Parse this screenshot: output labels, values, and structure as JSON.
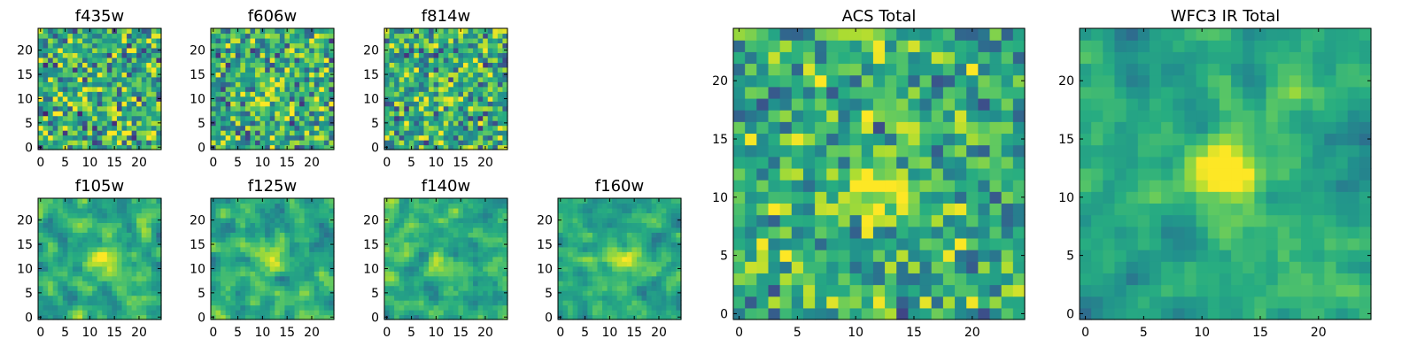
{
  "figure": {
    "colormap": "viridis",
    "colors": {
      "low": "#440154",
      "mid": "#21918c",
      "high": "#fde725",
      "frame": "#000000",
      "background": "#ffffff"
    }
  },
  "chart_data": [
    {
      "id": "f435w",
      "type": "heatmap",
      "title": "f435w",
      "grid_size": 25,
      "xlim": [
        0,
        24
      ],
      "ylim": [
        0,
        24
      ],
      "xticks": [
        0,
        5,
        10,
        15,
        20
      ],
      "yticks": [
        0,
        5,
        10,
        15,
        20
      ],
      "peak_center": [
        12,
        12
      ],
      "peak_strength": 0.05,
      "noise": 0.55,
      "seed": 11
    },
    {
      "id": "f606w",
      "type": "heatmap",
      "title": "f606w",
      "grid_size": 25,
      "xlim": [
        0,
        24
      ],
      "ylim": [
        0,
        24
      ],
      "xticks": [
        0,
        5,
        10,
        15,
        20
      ],
      "yticks": [
        0,
        5,
        10,
        15,
        20
      ],
      "peak_center": [
        12,
        11
      ],
      "peak_strength": 0.25,
      "noise": 0.5,
      "seed": 23
    },
    {
      "id": "f814w",
      "type": "heatmap",
      "title": "f814w",
      "grid_size": 25,
      "xlim": [
        0,
        24
      ],
      "ylim": [
        0,
        24
      ],
      "xticks": [
        0,
        5,
        10,
        15,
        20
      ],
      "yticks": [
        0,
        5,
        10,
        15,
        20
      ],
      "peak_center": [
        12,
        11
      ],
      "peak_strength": 0.2,
      "noise": 0.5,
      "seed": 37
    },
    {
      "id": "f105w",
      "type": "heatmap",
      "title": "f105w",
      "grid_size": 25,
      "xlim": [
        0,
        24
      ],
      "ylim": [
        0,
        24
      ],
      "xticks": [
        0,
        5,
        10,
        15,
        20
      ],
      "yticks": [
        0,
        5,
        10,
        15,
        20
      ],
      "peak_center": [
        12,
        12
      ],
      "peak_strength": 0.35,
      "noise": 0.35,
      "seed": 41,
      "smooth": true
    },
    {
      "id": "f125w",
      "type": "heatmap",
      "title": "f125w",
      "grid_size": 25,
      "xlim": [
        0,
        24
      ],
      "ylim": [
        0,
        24
      ],
      "xticks": [
        0,
        5,
        10,
        15,
        20
      ],
      "yticks": [
        0,
        5,
        10,
        15,
        20
      ],
      "peak_center": [
        12,
        12
      ],
      "peak_strength": 0.35,
      "noise": 0.35,
      "seed": 53,
      "smooth": true
    },
    {
      "id": "f140w",
      "type": "heatmap",
      "title": "f140w",
      "grid_size": 25,
      "xlim": [
        0,
        24
      ],
      "ylim": [
        0,
        24
      ],
      "xticks": [
        0,
        5,
        10,
        15,
        20
      ],
      "yticks": [
        0,
        5,
        10,
        15,
        20
      ],
      "peak_center": [
        12,
        11
      ],
      "peak_strength": 0.35,
      "noise": 0.35,
      "seed": 67,
      "smooth": true
    },
    {
      "id": "f160w",
      "type": "heatmap",
      "title": "f160w",
      "grid_size": 25,
      "xlim": [
        0,
        24
      ],
      "ylim": [
        0,
        24
      ],
      "xticks": [
        0,
        5,
        10,
        15,
        20
      ],
      "yticks": [
        0,
        5,
        10,
        15,
        20
      ],
      "peak_center": [
        13,
        12
      ],
      "peak_strength": 0.45,
      "noise": 0.3,
      "seed": 79,
      "smooth": true
    },
    {
      "id": "acs_total",
      "type": "heatmap",
      "title": "ACS Total",
      "grid_size": 25,
      "xlim": [
        0,
        24
      ],
      "ylim": [
        0,
        24
      ],
      "xticks": [
        0,
        5,
        10,
        15,
        20
      ],
      "yticks": [
        0,
        5,
        10,
        15,
        20
      ],
      "peak_center": [
        12,
        11
      ],
      "peak_strength": 0.45,
      "noise": 0.42,
      "seed": 97
    },
    {
      "id": "wfc3_ir_total",
      "type": "heatmap",
      "title": "WFC3 IR Total",
      "grid_size": 25,
      "xlim": [
        0,
        24
      ],
      "ylim": [
        0,
        24
      ],
      "xticks": [
        0,
        5,
        10,
        15,
        20
      ],
      "yticks": [
        0,
        5,
        10,
        15,
        20
      ],
      "peak_center": [
        12,
        12
      ],
      "peak_strength": 0.55,
      "noise": 0.28,
      "seed": 131,
      "smooth": true
    }
  ]
}
